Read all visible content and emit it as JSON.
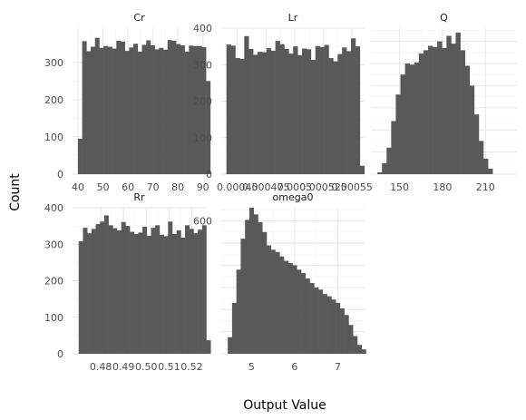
{
  "chart_data": {
    "type": "bar",
    "subtype": "faceted-histogram",
    "xlabel": "Output Value",
    "ylabel": "Count",
    "bar_color": "#595959",
    "grid": true,
    "background": "#ffffff",
    "panels": [
      {
        "name": "Cr",
        "x_range": [
          37.8,
          91.2
        ],
        "y_range": [
          0,
          392
        ],
        "x_ticks": [
          {
            "value": 40,
            "label": "40"
          },
          {
            "value": 50,
            "label": "50"
          },
          {
            "value": 60,
            "label": "60"
          },
          {
            "value": 70,
            "label": "70"
          },
          {
            "value": 80,
            "label": "80"
          },
          {
            "value": 90,
            "label": "90"
          }
        ],
        "y_ticks": [
          {
            "value": 0,
            "label": "0"
          },
          {
            "value": 100,
            "label": "100"
          },
          {
            "value": 200,
            "label": "200"
          },
          {
            "value": 300,
            "label": "300"
          }
        ],
        "bin_start": 39.94,
        "bin_width": 1.71,
        "values": [
          95,
          357,
          330,
          342,
          366,
          339,
          344,
          342,
          337,
          358,
          356,
          331,
          340,
          350,
          329,
          347,
          359,
          346,
          335,
          339,
          334,
          360,
          358,
          349,
          346,
          329,
          345,
          344,
          344,
          341,
          250
        ]
      },
      {
        "name": "Lr",
        "x_range": [
          0.000436,
          0.000561
        ],
        "y_range": [
          0,
          400
        ],
        "x_ticks": [
          {
            "value": 0.00045,
            "label": "0.00045"
          },
          {
            "value": 0.000475,
            "label": "0.000475"
          },
          {
            "value": 0.0005,
            "label": "0.0005"
          },
          {
            "value": 0.000525,
            "label": "0.000525"
          },
          {
            "value": 0.00055,
            "label": "0.00055"
          }
        ],
        "y_ticks": [
          {
            "value": 0,
            "label": "0"
          },
          {
            "value": 100,
            "label": "100"
          },
          {
            "value": 200,
            "label": "200"
          },
          {
            "value": 300,
            "label": "300"
          },
          {
            "value": 400,
            "label": "400"
          }
        ],
        "bin_start": 0.0004405,
        "bin_width": 3.88e-06,
        "values": [
          355,
          352,
          318,
          316,
          378,
          343,
          327,
          335,
          334,
          345,
          338,
          365,
          356,
          343,
          330,
          350,
          326,
          344,
          342,
          313,
          351,
          348,
          354,
          318,
          309,
          329,
          347,
          337,
          372,
          350,
          23
        ]
      },
      {
        "name": "Q",
        "x_range": [
          130,
          232
        ],
        "y_range": [
          0,
          660
        ],
        "x_ticks": [
          {
            "value": 150,
            "label": "150"
          },
          {
            "value": 180,
            "label": "180"
          },
          {
            "value": 210,
            "label": "210"
          }
        ],
        "y_ticks": [],
        "bin_start": 134.5,
        "bin_width": 3.22,
        "values": [
          8,
          50,
          120,
          240,
          360,
          450,
          500,
          495,
          505,
          545,
          560,
          580,
          575,
          600,
          570,
          625,
          590,
          640,
          560,
          490,
          400,
          270,
          150,
          70,
          25
        ]
      },
      {
        "name": "Rr",
        "x_range": [
          0.4676,
          0.5262
        ],
        "y_range": [
          0,
          400
        ],
        "x_ticks": [
          {
            "value": 0.48,
            "label": "0.48"
          },
          {
            "value": 0.49,
            "label": "0.49"
          },
          {
            "value": 0.5,
            "label": "0.50"
          },
          {
            "value": 0.51,
            "label": "0.51"
          },
          {
            "value": 0.52,
            "label": "0.52"
          }
        ],
        "y_ticks": [
          {
            "value": 0,
            "label": "0"
          },
          {
            "value": 100,
            "label": "100"
          },
          {
            "value": 200,
            "label": "200"
          },
          {
            "value": 300,
            "label": "300"
          },
          {
            "value": 400,
            "label": "400"
          }
        ],
        "bin_start": 0.4703,
        "bin_width": 0.00187,
        "values": [
          308,
          345,
          330,
          342,
          355,
          362,
          379,
          352,
          344,
          338,
          361,
          350,
          334,
          328,
          332,
          348,
          323,
          345,
          352,
          326,
          322,
          362,
          328,
          338,
          318,
          352,
          342,
          330,
          340,
          352,
          37
        ]
      },
      {
        "name": "omega0",
        "x_range": [
          4.3,
          7.62
        ],
        "y_range": [
          0,
          660
        ],
        "x_ticks": [
          {
            "value": 5,
            "label": "5"
          },
          {
            "value": 6,
            "label": "6"
          },
          {
            "value": 7,
            "label": "7"
          }
        ],
        "y_ticks": [
          {
            "value": 600,
            "label": "600"
          }
        ],
        "bin_start": 4.45,
        "bin_width": 0.1,
        "values": [
          75,
          230,
          380,
          520,
          605,
          660,
          630,
          595,
          550,
          490,
          470,
          460,
          440,
          420,
          410,
          400,
          380,
          365,
          340,
          320,
          300,
          290,
          270,
          260,
          245,
          230,
          205,
          175,
          130,
          80,
          40,
          20
        ]
      }
    ]
  }
}
